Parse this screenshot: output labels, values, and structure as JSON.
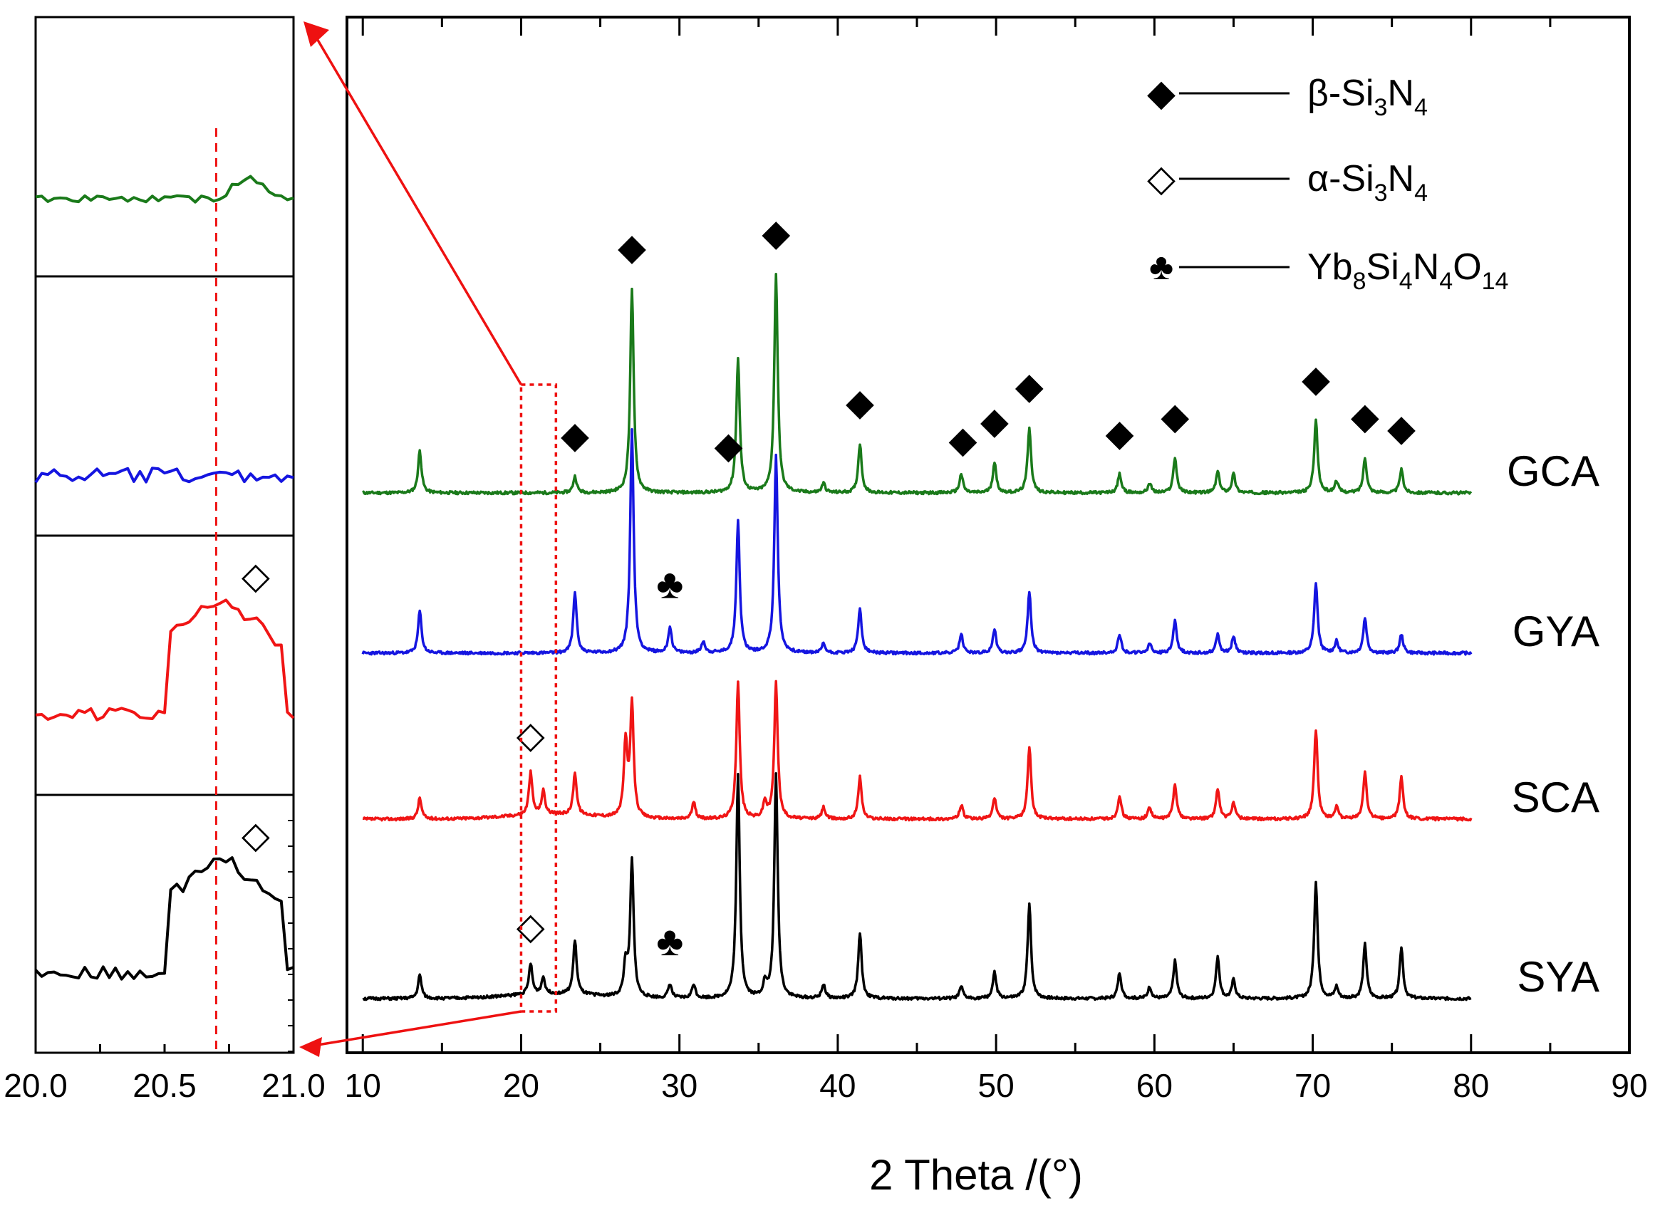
{
  "chart_data": {
    "type": "line",
    "title": "",
    "xlabel": "2 Theta /(°)",
    "ylabel": "",
    "xlim": [
      9,
      90
    ],
    "xticks": [
      10,
      20,
      30,
      40,
      50,
      60,
      70,
      80,
      90
    ],
    "legend": {
      "placement": "top-right",
      "entries": [
        {
          "symbol": "◆",
          "name": "β-Si3N4",
          "base": "β-Si",
          "s1": "3",
          "mid": "N",
          "s2": "4"
        },
        {
          "symbol": "◇",
          "name": "α-Si3N4",
          "base": "α-Si",
          "s1": "3",
          "mid": "N",
          "s2": "4"
        },
        {
          "symbol": "♣",
          "name": "Yb8Si4N4O14"
        }
      ]
    },
    "series": [
      {
        "name": "GCA",
        "color": "#1a7a1a",
        "baseline_intensity": 0,
        "peaks": [
          [
            13.6,
            0.18
          ],
          [
            23.4,
            0.07
          ],
          [
            27.0,
            0.87
          ],
          [
            33.7,
            0.57
          ],
          [
            36.1,
            0.93
          ],
          [
            39.1,
            0.04
          ],
          [
            41.4,
            0.21
          ],
          [
            47.8,
            0.08
          ],
          [
            49.9,
            0.13
          ],
          [
            52.1,
            0.28
          ],
          [
            57.8,
            0.08
          ],
          [
            59.7,
            0.04
          ],
          [
            61.3,
            0.15
          ],
          [
            64.0,
            0.09
          ],
          [
            65.0,
            0.08
          ],
          [
            70.2,
            0.31
          ],
          [
            71.5,
            0.05
          ],
          [
            73.3,
            0.15
          ],
          [
            75.6,
            0.1
          ]
        ]
      },
      {
        "name": "GYA",
        "color": "#1515e0",
        "baseline_intensity": 0,
        "peaks": [
          [
            13.6,
            0.18
          ],
          [
            23.4,
            0.26
          ],
          [
            27.0,
            0.95
          ],
          [
            29.4,
            0.11
          ],
          [
            31.5,
            0.05
          ],
          [
            33.7,
            0.56
          ],
          [
            36.1,
            0.84
          ],
          [
            39.1,
            0.04
          ],
          [
            41.4,
            0.19
          ],
          [
            47.8,
            0.08
          ],
          [
            49.9,
            0.1
          ],
          [
            52.1,
            0.26
          ],
          [
            57.8,
            0.08
          ],
          [
            59.7,
            0.04
          ],
          [
            61.3,
            0.14
          ],
          [
            64.0,
            0.08
          ],
          [
            65.0,
            0.07
          ],
          [
            70.2,
            0.3
          ],
          [
            71.5,
            0.05
          ],
          [
            73.3,
            0.15
          ],
          [
            75.6,
            0.08
          ]
        ]
      },
      {
        "name": "SCA",
        "color": "#f01515",
        "baseline_intensity": 0,
        "peaks": [
          [
            13.6,
            0.09
          ],
          [
            20.6,
            0.18
          ],
          [
            21.4,
            0.1
          ],
          [
            23.4,
            0.18
          ],
          [
            26.6,
            0.32
          ],
          [
            27.0,
            0.48
          ],
          [
            30.9,
            0.07
          ],
          [
            33.7,
            0.58
          ],
          [
            35.4,
            0.07
          ],
          [
            36.1,
            0.58
          ],
          [
            39.1,
            0.05
          ],
          [
            41.4,
            0.18
          ],
          [
            47.8,
            0.06
          ],
          [
            49.9,
            0.09
          ],
          [
            52.1,
            0.31
          ],
          [
            57.8,
            0.1
          ],
          [
            59.7,
            0.05
          ],
          [
            61.3,
            0.15
          ],
          [
            64.0,
            0.13
          ],
          [
            65.0,
            0.07
          ],
          [
            70.2,
            0.38
          ],
          [
            71.5,
            0.05
          ],
          [
            73.3,
            0.2
          ],
          [
            75.6,
            0.18
          ]
        ]
      },
      {
        "name": "SYA",
        "color": "#000000",
        "baseline_intensity": 0,
        "peaks": [
          [
            13.6,
            0.1
          ],
          [
            20.6,
            0.13
          ],
          [
            21.4,
            0.07
          ],
          [
            23.4,
            0.23
          ],
          [
            26.6,
            0.14
          ],
          [
            27.0,
            0.58
          ],
          [
            29.4,
            0.06
          ],
          [
            30.9,
            0.06
          ],
          [
            33.7,
            0.95
          ],
          [
            35.4,
            0.06
          ],
          [
            36.1,
            0.95
          ],
          [
            39.1,
            0.06
          ],
          [
            41.4,
            0.28
          ],
          [
            47.8,
            0.05
          ],
          [
            49.9,
            0.11
          ],
          [
            52.1,
            0.4
          ],
          [
            57.8,
            0.11
          ],
          [
            59.7,
            0.05
          ],
          [
            61.3,
            0.16
          ],
          [
            64.0,
            0.18
          ],
          [
            65.0,
            0.08
          ],
          [
            70.2,
            0.5
          ],
          [
            71.5,
            0.05
          ],
          [
            73.3,
            0.23
          ],
          [
            75.6,
            0.22
          ]
        ]
      }
    ],
    "phase_markers": [
      {
        "series": "GCA",
        "symbol": "◆",
        "x": [
          23.4,
          27.0,
          33.1,
          36.1,
          41.4,
          47.9,
          49.9,
          52.1,
          57.8,
          61.3,
          70.2,
          73.3,
          75.6
        ]
      },
      {
        "series": "GYA",
        "symbol": "♣",
        "x": [
          29.4
        ]
      },
      {
        "series": "SCA",
        "symbol": "◇",
        "x": [
          20.6
        ]
      },
      {
        "series": "SYA",
        "symbol": "◇",
        "x": [
          20.6
        ]
      },
      {
        "series": "SYA",
        "symbol": "♣",
        "x": [
          29.4
        ]
      }
    ],
    "inset": {
      "xlim": [
        20.0,
        21.0
      ],
      "xticks": [
        "20.0",
        "20.5",
        "21.0"
      ],
      "marker_line_x": 20.7,
      "zoom_range": [
        20.0,
        22.2
      ],
      "panels": [
        {
          "series": "GCA",
          "color": "#1a7a1a",
          "peak": false
        },
        {
          "series": "GYA",
          "color": "#1515e0",
          "peak": false
        },
        {
          "series": "SCA",
          "color": "#f01515",
          "peak": true,
          "symbol": "◇"
        },
        {
          "series": "SYA",
          "color": "#000000",
          "peak": true,
          "symbol": "◇"
        }
      ]
    }
  }
}
